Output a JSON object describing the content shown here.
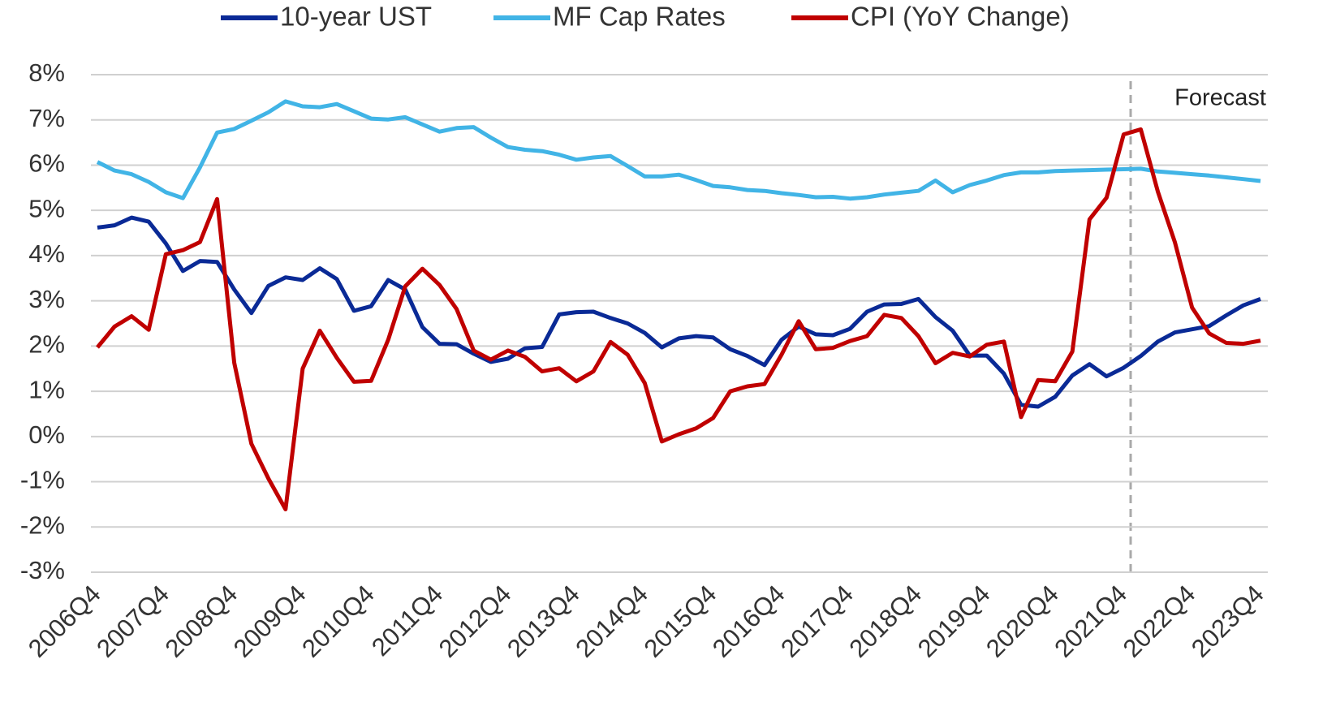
{
  "chart_data": {
    "type": "line",
    "categories": [
      "2006Q4",
      null,
      null,
      null,
      "2007Q4",
      null,
      null,
      null,
      "2008Q4",
      null,
      null,
      null,
      "2009Q4",
      null,
      null,
      null,
      "2010Q4",
      null,
      null,
      null,
      "2011Q4",
      null,
      null,
      null,
      "2012Q4",
      null,
      null,
      null,
      "2013Q4",
      null,
      null,
      null,
      "2014Q4",
      null,
      null,
      null,
      "2015Q4",
      null,
      null,
      null,
      "2016Q4",
      null,
      null,
      null,
      "2017Q4",
      null,
      null,
      null,
      "2018Q4",
      null,
      null,
      null,
      "2019Q4",
      null,
      null,
      null,
      "2020Q4",
      null,
      null,
      null,
      "2021Q4",
      null,
      null,
      null,
      "2022Q4",
      null,
      null,
      null,
      "2023Q4"
    ],
    "series": [
      {
        "name": "10-year UST",
        "color": "#0a2a96",
        "values": [
          4.62,
          4.67,
          4.84,
          4.75,
          4.27,
          3.66,
          3.88,
          3.86,
          3.25,
          2.73,
          3.33,
          3.52,
          3.46,
          3.72,
          3.48,
          2.78,
          2.88,
          3.46,
          3.25,
          2.42,
          2.05,
          2.04,
          1.83,
          1.65,
          1.72,
          1.95,
          1.98,
          2.7,
          2.75,
          2.76,
          2.62,
          2.5,
          2.29,
          1.97,
          2.17,
          2.22,
          2.19,
          1.93,
          1.78,
          1.58,
          2.14,
          2.43,
          2.26,
          2.24,
          2.38,
          2.76,
          2.92,
          2.93,
          3.04,
          2.64,
          2.34,
          1.79,
          1.79,
          1.39,
          0.7,
          0.66,
          0.88,
          1.35,
          1.6,
          1.33,
          1.52,
          1.78,
          2.1,
          2.3,
          2.37,
          2.44,
          2.68,
          2.9,
          3.04
        ]
      },
      {
        "name": "MF Cap Rates",
        "color": "#41b4e6",
        "values": [
          6.07,
          5.88,
          5.8,
          5.63,
          5.4,
          5.27,
          5.95,
          6.72,
          6.8,
          6.98,
          7.17,
          7.41,
          7.3,
          7.28,
          7.35,
          7.19,
          7.03,
          7.01,
          7.06,
          6.9,
          6.74,
          6.82,
          6.84,
          6.61,
          6.4,
          6.34,
          6.31,
          6.23,
          6.12,
          6.17,
          6.2,
          5.98,
          5.75,
          5.75,
          5.79,
          5.67,
          5.54,
          5.51,
          5.45,
          5.43,
          5.38,
          5.34,
          5.29,
          5.3,
          5.26,
          5.29,
          5.35,
          5.39,
          5.43,
          5.66,
          5.4,
          5.56,
          5.66,
          5.78,
          5.84,
          5.84,
          5.87,
          5.88,
          5.89,
          5.9,
          5.91,
          5.92,
          5.86,
          5.83,
          5.8,
          5.77,
          5.73,
          5.69,
          5.65
        ]
      },
      {
        "name": "CPI (YoY Change)",
        "color": "#c00000",
        "values": [
          1.97,
          2.43,
          2.66,
          2.36,
          4.03,
          4.12,
          4.3,
          5.25,
          1.63,
          -0.16,
          -0.93,
          -1.61,
          1.5,
          2.34,
          1.74,
          1.21,
          1.23,
          2.14,
          3.32,
          3.71,
          3.35,
          2.82,
          1.9,
          1.7,
          1.9,
          1.76,
          1.44,
          1.51,
          1.22,
          1.44,
          2.09,
          1.81,
          1.18,
          -0.11,
          0.05,
          0.18,
          0.41,
          1.0,
          1.11,
          1.16,
          1.81,
          2.55,
          1.93,
          1.96,
          2.11,
          2.22,
          2.69,
          2.62,
          2.22,
          1.62,
          1.85,
          1.77,
          2.03,
          2.1,
          0.43,
          1.25,
          1.22,
          1.88,
          4.8,
          5.28,
          6.68,
          6.79,
          5.41,
          4.29,
          2.85,
          2.28,
          2.07,
          2.05,
          2.12
        ]
      }
    ],
    "ylim": [
      -3,
      8
    ],
    "yticks": [
      {
        "value": -3,
        "label": "-3%"
      },
      {
        "value": -2,
        "label": "-2%"
      },
      {
        "value": -1,
        "label": "-1%"
      },
      {
        "value": 0,
        "label": "0%"
      },
      {
        "value": 1,
        "label": "1%"
      },
      {
        "value": 2,
        "label": "2%"
      },
      {
        "value": 3,
        "label": "3%"
      },
      {
        "value": 4,
        "label": "4%"
      },
      {
        "value": 5,
        "label": "5%"
      },
      {
        "value": 6,
        "label": "6%"
      },
      {
        "value": 7,
        "label": "7%"
      },
      {
        "value": 8,
        "label": "8%"
      }
    ],
    "grid": true,
    "legend": "top",
    "annotation": "Forecast"
  }
}
